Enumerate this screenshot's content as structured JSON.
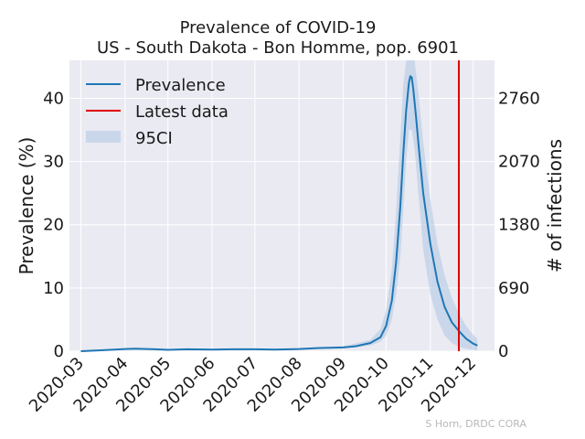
{
  "chart_data": {
    "type": "line",
    "title_line1": "Prevalence of COVID-19",
    "title_line2": "US - South Dakota - Bon Homme, pop. 6901",
    "ylabel": "Prevalence (%)",
    "ylabel_right": "# of infections",
    "x_ticks": [
      "2020-03",
      "2020-04",
      "2020-05",
      "2020-06",
      "2020-07",
      "2020-08",
      "2020-09",
      "2020-10",
      "2020-11",
      "2020-12"
    ],
    "x_tick_dates": [
      "2020-03-01",
      "2020-04-01",
      "2020-05-01",
      "2020-06-01",
      "2020-07-01",
      "2020-08-01",
      "2020-09-01",
      "2020-10-01",
      "2020-11-01",
      "2020-12-01"
    ],
    "xlim": [
      "2020-02-22",
      "2020-12-16"
    ],
    "ylim": [
      0,
      46
    ],
    "y_ticks": [
      0,
      10,
      20,
      30,
      40
    ],
    "y_ticks_right": [
      0,
      690,
      1380,
      2070,
      2760
    ],
    "latest_data_date": "2020-11-21",
    "grid": true,
    "legend": {
      "placement": "top-left",
      "entries": [
        {
          "label": "Prevalence",
          "kind": "line",
          "color": "#1f77b4"
        },
        {
          "label": "Latest data",
          "kind": "line",
          "color": "#e00000"
        },
        {
          "label": "95CI",
          "kind": "band",
          "color": "#b9cde5"
        }
      ]
    },
    "credit": "S Horn, DRDC CORA",
    "series": [
      {
        "name": "Prevalence",
        "color": "#1f77b4",
        "points": [
          [
            "2020-03-01",
            0.0
          ],
          [
            "2020-03-15",
            0.15
          ],
          [
            "2020-04-01",
            0.35
          ],
          [
            "2020-04-08",
            0.4
          ],
          [
            "2020-04-22",
            0.3
          ],
          [
            "2020-05-01",
            0.22
          ],
          [
            "2020-05-15",
            0.3
          ],
          [
            "2020-06-01",
            0.25
          ],
          [
            "2020-06-15",
            0.3
          ],
          [
            "2020-07-01",
            0.3
          ],
          [
            "2020-07-15",
            0.25
          ],
          [
            "2020-08-01",
            0.35
          ],
          [
            "2020-08-15",
            0.5
          ],
          [
            "2020-09-01",
            0.6
          ],
          [
            "2020-09-10",
            0.8
          ],
          [
            "2020-09-20",
            1.3
          ],
          [
            "2020-09-27",
            2.2
          ],
          [
            "2020-10-01",
            4.0
          ],
          [
            "2020-10-05",
            8.0
          ],
          [
            "2020-10-08",
            14.0
          ],
          [
            "2020-10-11",
            23.0
          ],
          [
            "2020-10-13",
            31.0
          ],
          [
            "2020-10-15",
            38.0
          ],
          [
            "2020-10-17",
            42.5
          ],
          [
            "2020-10-18",
            43.5
          ],
          [
            "2020-10-19",
            43.3
          ],
          [
            "2020-10-20",
            41.5
          ],
          [
            "2020-10-22",
            37.0
          ],
          [
            "2020-10-24",
            32.0
          ],
          [
            "2020-10-27",
            25.0
          ],
          [
            "2020-11-01",
            17.0
          ],
          [
            "2020-11-06",
            11.0
          ],
          [
            "2020-11-11",
            7.0
          ],
          [
            "2020-11-16",
            4.6
          ],
          [
            "2020-11-21",
            3.2
          ],
          [
            "2020-11-26",
            2.0
          ],
          [
            "2020-12-01",
            1.2
          ],
          [
            "2020-12-04",
            0.9
          ]
        ]
      }
    ],
    "band_95ci": [
      [
        "2020-03-01",
        0.0,
        0.05
      ],
      [
        "2020-04-01",
        0.3,
        0.45
      ],
      [
        "2020-05-01",
        0.18,
        0.3
      ],
      [
        "2020-06-01",
        0.2,
        0.32
      ],
      [
        "2020-07-01",
        0.22,
        0.38
      ],
      [
        "2020-08-01",
        0.28,
        0.45
      ],
      [
        "2020-09-01",
        0.45,
        0.8
      ],
      [
        "2020-09-20",
        0.9,
        1.8
      ],
      [
        "2020-09-27",
        1.5,
        3.5
      ],
      [
        "2020-10-01",
        2.5,
        6.5
      ],
      [
        "2020-10-05",
        5.0,
        13.0
      ],
      [
        "2020-10-08",
        9.0,
        22.0
      ],
      [
        "2020-10-11",
        15.0,
        34.0
      ],
      [
        "2020-10-13",
        22.0,
        42.0
      ],
      [
        "2020-10-15",
        30.0,
        46.0
      ],
      [
        "2020-10-17",
        35.0,
        46.0
      ],
      [
        "2020-10-19",
        35.0,
        46.0
      ],
      [
        "2020-10-21",
        32.0,
        46.0
      ],
      [
        "2020-10-24",
        24.0,
        40.0
      ],
      [
        "2020-10-27",
        16.0,
        33.0
      ],
      [
        "2020-11-01",
        9.0,
        24.0
      ],
      [
        "2020-11-06",
        5.0,
        17.0
      ],
      [
        "2020-11-11",
        2.5,
        12.0
      ],
      [
        "2020-11-16",
        1.3,
        8.5
      ],
      [
        "2020-11-21",
        0.7,
        6.0
      ],
      [
        "2020-11-26",
        0.4,
        4.0
      ],
      [
        "2020-12-01",
        0.2,
        2.6
      ],
      [
        "2020-12-04",
        0.15,
        2.0
      ]
    ]
  }
}
